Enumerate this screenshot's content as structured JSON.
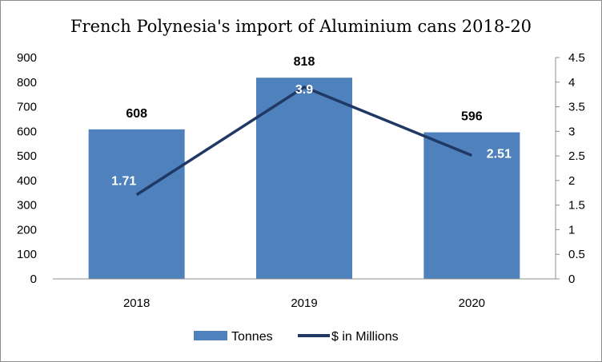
{
  "chart_data": {
    "type": "bar",
    "title": "French Polynesia's import of Aluminium cans 2018-20",
    "categories": [
      "2018",
      "2019",
      "2020"
    ],
    "series": [
      {
        "name": "Tonnes",
        "type": "bar",
        "axis": "left",
        "values": [
          608,
          818,
          596
        ],
        "labels": [
          "608",
          "818",
          "596"
        ],
        "color": "#4f81bd"
      },
      {
        "name": "$ in Millions",
        "type": "line",
        "axis": "right",
        "values": [
          1.71,
          3.9,
          2.51
        ],
        "labels": [
          "1.71",
          "3.9",
          "2.51"
        ],
        "color": "#1f3864"
      }
    ],
    "y_left": {
      "min": 0,
      "max": 900,
      "step": 100,
      "ticks": [
        "0",
        "100",
        "200",
        "300",
        "400",
        "500",
        "600",
        "700",
        "800",
        "900"
      ]
    },
    "y_right": {
      "min": 0,
      "max": 4.5,
      "step": 0.5,
      "ticks": [
        "0",
        "0.5",
        "1",
        "1.5",
        "2",
        "2.5",
        "3",
        "3.5",
        "4",
        "4.5"
      ]
    },
    "grid": false,
    "legend": "bottom"
  }
}
